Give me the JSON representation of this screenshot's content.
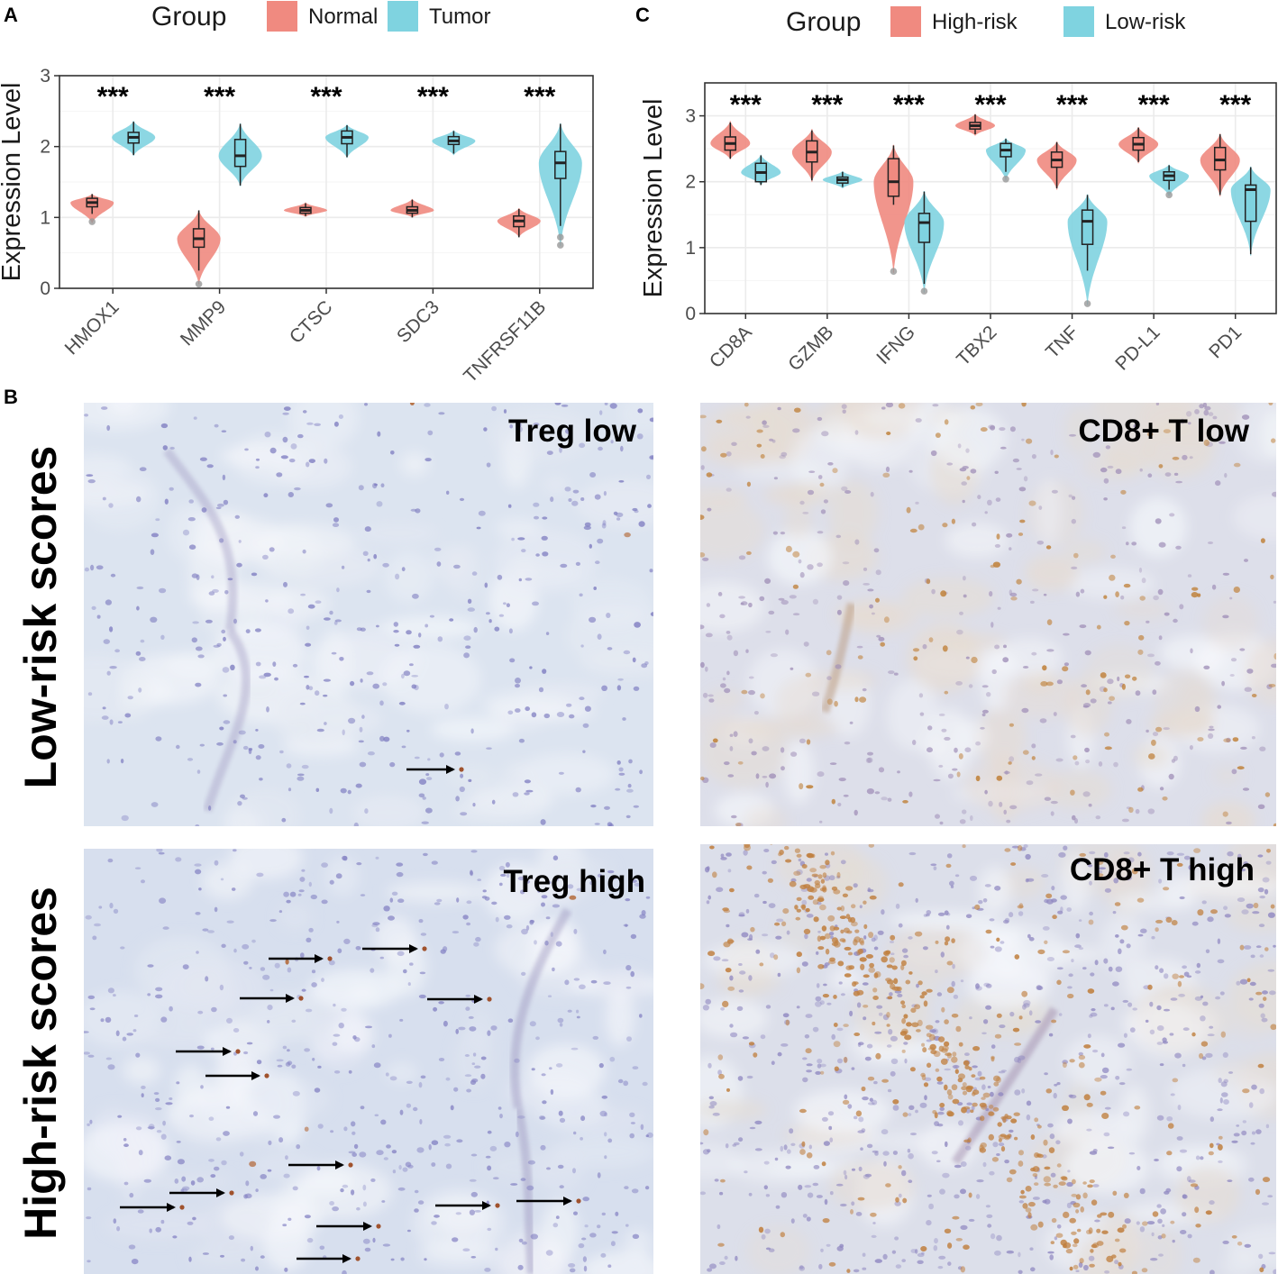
{
  "colors": {
    "normal": "#F08A80",
    "tumor": "#7FD3E0",
    "high_risk": "#F08A80",
    "low_risk": "#7FD3E0",
    "tissue_bg": "#DDE5F1",
    "nuclei": "#8A88C4",
    "dab_stain": "#C2853F",
    "arrow": "#000000"
  },
  "panel_letters": {
    "a": "A",
    "b": "B",
    "c": "C"
  },
  "rows": {
    "top": "Low-risk scores",
    "bottom": "High-risk scores"
  },
  "ihc": {
    "treg_low": "Treg low",
    "cd8_low": "CD8+ T low",
    "treg_high": "Treg high",
    "cd8_high": "CD8+ T high"
  },
  "chart_data": [
    {
      "type": "violin",
      "panel": "A",
      "ylabel": "Expression Level",
      "ylim": [
        0,
        3
      ],
      "yticks": [
        0,
        1,
        2,
        3
      ],
      "grid": true,
      "legend": {
        "title": "Group",
        "placement": "top",
        "entries": [
          "Normal",
          "Tumor"
        ]
      },
      "categories": [
        "HMOX1",
        "MMP9",
        "CTSC",
        "SDC3",
        "TNFRSF11B"
      ],
      "annotations": [
        "***",
        "***",
        "***",
        "***",
        "***"
      ],
      "series": [
        {
          "name": "Normal",
          "boxes": [
            {
              "min": 1.05,
              "q1": 1.15,
              "median": 1.21,
              "q3": 1.27,
              "max": 1.33,
              "outliers": [
                0.94
              ],
              "vmin": 0.92,
              "vmax": 1.33
            },
            {
              "min": 0.25,
              "q1": 0.58,
              "median": 0.7,
              "q3": 0.84,
              "max": 1.1,
              "outliers": [
                0.06
              ],
              "vmin": 0.06,
              "vmax": 1.1
            },
            {
              "min": 1.02,
              "q1": 1.06,
              "median": 1.1,
              "q3": 1.14,
              "max": 1.2,
              "outliers": [],
              "vmin": 1.01,
              "vmax": 1.21
            },
            {
              "min": 1.0,
              "q1": 1.06,
              "median": 1.1,
              "q3": 1.15,
              "max": 1.25,
              "outliers": [],
              "vmin": 1.0,
              "vmax": 1.26
            },
            {
              "min": 0.72,
              "q1": 0.87,
              "median": 0.95,
              "q3": 1.02,
              "max": 1.12,
              "outliers": [],
              "vmin": 0.72,
              "vmax": 1.13
            }
          ]
        },
        {
          "name": "Tumor",
          "boxes": [
            {
              "min": 1.88,
              "q1": 2.05,
              "median": 2.13,
              "q3": 2.2,
              "max": 2.35,
              "outliers": [],
              "vmin": 1.87,
              "vmax": 2.36
            },
            {
              "min": 1.45,
              "q1": 1.72,
              "median": 1.87,
              "q3": 2.1,
              "max": 2.32,
              "outliers": [],
              "vmin": 1.44,
              "vmax": 2.33
            },
            {
              "min": 1.85,
              "q1": 2.04,
              "median": 2.13,
              "q3": 2.22,
              "max": 2.3,
              "outliers": [],
              "vmin": 1.84,
              "vmax": 2.31
            },
            {
              "min": 1.9,
              "q1": 2.03,
              "median": 2.08,
              "q3": 2.14,
              "max": 2.22,
              "outliers": [],
              "vmin": 1.88,
              "vmax": 2.23
            },
            {
              "min": 0.88,
              "q1": 1.55,
              "median": 1.77,
              "q3": 1.93,
              "max": 2.32,
              "outliers": [
                0.72,
                0.61
              ],
              "vmin": 0.6,
              "vmax": 2.33
            }
          ]
        }
      ]
    },
    {
      "type": "violin",
      "panel": "C",
      "ylabel": "Expression Level",
      "ylim": [
        0,
        3.5
      ],
      "yticks": [
        0,
        1,
        2,
        3
      ],
      "grid": true,
      "legend": {
        "title": "Group",
        "placement": "top",
        "entries": [
          "High-risk",
          "Low-risk"
        ]
      },
      "categories": [
        "CD8A",
        "GZMB",
        "IFNG",
        "TBX2",
        "TNF",
        "PD-L1",
        "PD1"
      ],
      "annotations": [
        "***",
        "***",
        "***",
        "***",
        "***",
        "***",
        "***"
      ],
      "series": [
        {
          "name": "High-risk",
          "boxes": [
            {
              "min": 2.35,
              "q1": 2.48,
              "median": 2.58,
              "q3": 2.68,
              "max": 2.9,
              "outliers": [],
              "vmin": 2.34,
              "vmax": 2.92
            },
            {
              "min": 2.02,
              "q1": 2.3,
              "median": 2.45,
              "q3": 2.62,
              "max": 2.78,
              "outliers": [],
              "vmin": 2.0,
              "vmax": 2.8
            },
            {
              "min": 1.65,
              "q1": 1.78,
              "median": 2.0,
              "q3": 2.35,
              "max": 2.55,
              "outliers": [
                0.64
              ],
              "vmin": 0.62,
              "vmax": 2.56
            },
            {
              "min": 2.72,
              "q1": 2.8,
              "median": 2.85,
              "q3": 2.9,
              "max": 3.02,
              "outliers": [],
              "vmin": 2.7,
              "vmax": 3.03
            },
            {
              "min": 1.9,
              "q1": 2.22,
              "median": 2.33,
              "q3": 2.45,
              "max": 2.6,
              "outliers": [],
              "vmin": 1.88,
              "vmax": 2.61
            },
            {
              "min": 2.3,
              "q1": 2.48,
              "median": 2.57,
              "q3": 2.67,
              "max": 2.82,
              "outliers": [],
              "vmin": 2.28,
              "vmax": 2.83
            },
            {
              "min": 1.8,
              "q1": 2.18,
              "median": 2.33,
              "q3": 2.52,
              "max": 2.72,
              "outliers": [],
              "vmin": 1.78,
              "vmax": 2.73
            }
          ]
        },
        {
          "name": "Low-risk",
          "boxes": [
            {
              "min": 1.95,
              "q1": 2.0,
              "median": 2.14,
              "q3": 2.28,
              "max": 2.4,
              "outliers": [],
              "vmin": 1.95,
              "vmax": 2.41
            },
            {
              "min": 1.92,
              "q1": 1.98,
              "median": 2.03,
              "q3": 2.07,
              "max": 2.15,
              "outliers": [],
              "vmin": 1.9,
              "vmax": 2.16
            },
            {
              "min": 0.45,
              "q1": 1.08,
              "median": 1.38,
              "q3": 1.52,
              "max": 1.85,
              "outliers": [
                0.34
              ],
              "vmin": 0.32,
              "vmax": 1.86
            },
            {
              "min": 2.15,
              "q1": 2.38,
              "median": 2.48,
              "q3": 2.58,
              "max": 2.65,
              "outliers": [
                2.04
              ],
              "vmin": 2.02,
              "vmax": 2.66
            },
            {
              "min": 0.65,
              "q1": 1.05,
              "median": 1.4,
              "q3": 1.57,
              "max": 1.8,
              "outliers": [
                0.15
              ],
              "vmin": 0.13,
              "vmax": 1.81
            },
            {
              "min": 1.88,
              "q1": 2.02,
              "median": 2.09,
              "q3": 2.15,
              "max": 2.25,
              "outliers": [
                1.8
              ],
              "vmin": 1.78,
              "vmax": 2.26
            },
            {
              "min": 0.9,
              "q1": 1.4,
              "median": 1.88,
              "q3": 1.95,
              "max": 2.22,
              "outliers": [],
              "vmin": 0.88,
              "vmax": 2.23
            }
          ]
        }
      ]
    }
  ]
}
